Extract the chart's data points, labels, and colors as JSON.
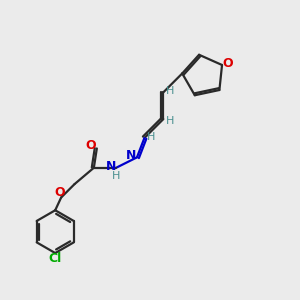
{
  "background_color": "#ebebeb",
  "bond_color": "#2a2a2a",
  "O_color": "#dd0000",
  "N_color": "#0000cc",
  "Cl_color": "#00aa00",
  "H_color": "#4a9090",
  "line_width": 1.6,
  "fig_w": 3.0,
  "fig_h": 3.0,
  "dpi": 100,
  "xlim": [
    0,
    10
  ],
  "ylim": [
    0,
    10
  ]
}
